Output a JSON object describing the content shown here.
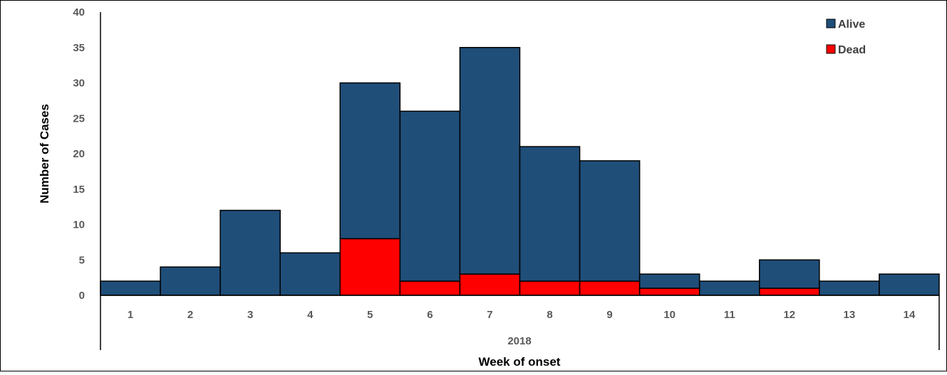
{
  "chart_data": {
    "type": "bar",
    "stacked": true,
    "title": "",
    "xlabel": "Week of onset",
    "x_group_label": "2018",
    "ylabel": "Number of Cases",
    "ylim": [
      0,
      40
    ],
    "yticks": [
      "0",
      "5",
      "10",
      "15",
      "20",
      "25",
      "30",
      "35",
      "40"
    ],
    "categories": [
      "1",
      "2",
      "3",
      "4",
      "5",
      "6",
      "7",
      "8",
      "9",
      "10",
      "11",
      "12",
      "13",
      "14"
    ],
    "series": [
      {
        "name": "Dead",
        "color": "#ff0000",
        "values": [
          0,
          0,
          0,
          0,
          8,
          2,
          3,
          2,
          2,
          1,
          0,
          1,
          0,
          0
        ]
      },
      {
        "name": "Alive",
        "color": "#1f4e79",
        "values": [
          2,
          4,
          12,
          6,
          22,
          24,
          32,
          19,
          17,
          2,
          2,
          4,
          2,
          3
        ]
      }
    ],
    "legend": {
      "position": "top-right",
      "order": [
        "Alive",
        "Dead"
      ]
    },
    "grid": false
  }
}
